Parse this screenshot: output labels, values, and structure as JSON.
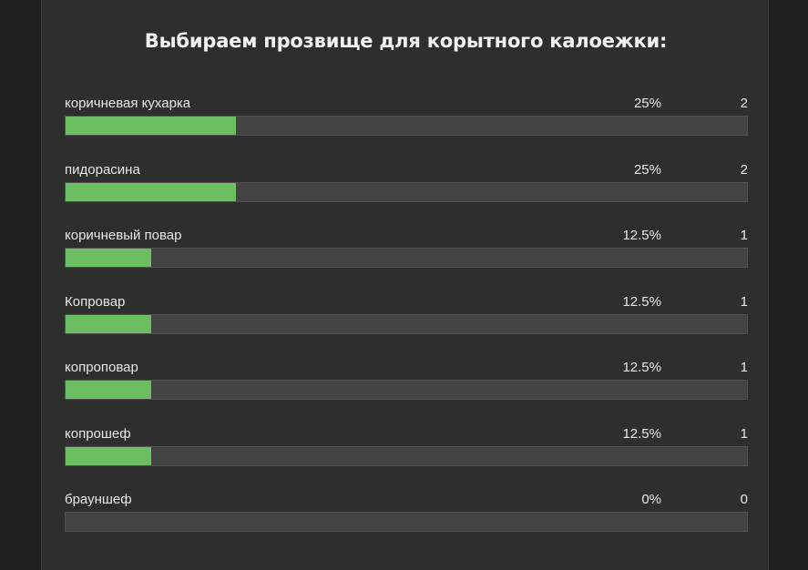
{
  "poll": {
    "title": "Выбираем прозвище для корытного калоежки:",
    "options": [
      {
        "label": "коричневая кухарка",
        "percent_text": "25%",
        "percent": 25,
        "count": "2"
      },
      {
        "label": "пидорасина",
        "percent_text": "25%",
        "percent": 25,
        "count": "2"
      },
      {
        "label": "коричневый повар",
        "percent_text": "12.5%",
        "percent": 12.5,
        "count": "1"
      },
      {
        "label": "Копровар",
        "percent_text": "12.5%",
        "percent": 12.5,
        "count": "1"
      },
      {
        "label": "копроповар",
        "percent_text": "12.5%",
        "percent": 12.5,
        "count": "1"
      },
      {
        "label": "копрошеф",
        "percent_text": "12.5%",
        "percent": 12.5,
        "count": "1"
      },
      {
        "label": "брауншеф",
        "percent_text": "0%",
        "percent": 0,
        "count": "0"
      }
    ]
  },
  "colors": {
    "bar_fill": "#6dbe62",
    "bar_track": "#434343",
    "panel_bg": "#2e2e2e",
    "page_bg": "#1f1f1f"
  }
}
